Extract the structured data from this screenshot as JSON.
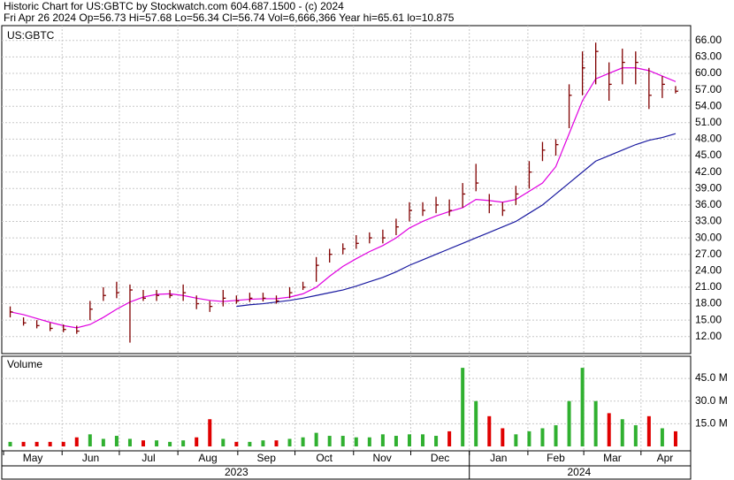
{
  "chart_data": {
    "type": "ohlc",
    "title": "Historic Chart for US:GBTC by Stockwatch.com 604.687.1500 - (c) 2024",
    "subtitle": "Fri Apr 26 2024   Op=56.73  Hi=57.68  Lo=56.34  Cl=56.74  Vol=6,666,366  Year hi=65.61  lo=10.875",
    "symbol": "US:GBTC",
    "volume_label": "Volume",
    "years": [
      "2023",
      "2024"
    ],
    "x": [
      0,
      1,
      2,
      3,
      4,
      5,
      6,
      7,
      8,
      9,
      10,
      11,
      12,
      13,
      14,
      15,
      16,
      17,
      18,
      19,
      20,
      21,
      22,
      23,
      24,
      25,
      26,
      27,
      28,
      29,
      30,
      31,
      32,
      33,
      34,
      35,
      36,
      37,
      38,
      39,
      40,
      41,
      42,
      43,
      44,
      45,
      46,
      47,
      48,
      49,
      50
    ],
    "xlim": [
      -0.5,
      51
    ],
    "xticks": [
      {
        "value": -0.5,
        "label": "May"
      },
      {
        "value": 3.9,
        "label": "Jun"
      },
      {
        "value": 8.2,
        "label": "Jul"
      },
      {
        "value": 12.6,
        "label": "Aug"
      },
      {
        "value": 17.1,
        "label": "Sep"
      },
      {
        "value": 21.4,
        "label": "Oct"
      },
      {
        "value": 25.8,
        "label": "Nov"
      },
      {
        "value": 30.1,
        "label": "Dec"
      },
      {
        "value": 34.5,
        "label": "Jan"
      },
      {
        "value": 38.9,
        "label": "Feb"
      },
      {
        "value": 43.1,
        "label": "Mar"
      },
      {
        "value": 47.4,
        "label": "Apr"
      }
    ],
    "high": [
      17.5,
      15.5,
      15,
      14.5,
      14.2,
      14,
      18.5,
      21,
      22,
      21.5,
      20.5,
      20.5,
      20.5,
      21.5,
      19.5,
      18.5,
      20.5,
      19.5,
      20,
      20,
      19.5,
      21,
      22,
      26.5,
      28,
      29,
      30.5,
      31,
      31.5,
      33.5,
      36.5,
      36.5,
      37.5,
      37,
      40,
      43.5,
      38,
      36.5,
      39.5,
      44,
      47.5,
      48,
      58,
      64,
      65.6,
      62,
      64.5,
      64,
      61,
      59.5,
      57.68
    ],
    "low": [
      15.5,
      14,
      13.5,
      13,
      12.8,
      12.5,
      15,
      18.5,
      19,
      10.9,
      18.5,
      18.5,
      19,
      18.5,
      17,
      16.5,
      17.5,
      18,
      18.3,
      18.4,
      18,
      19,
      20.5,
      22,
      25.5,
      27,
      28,
      29,
      29,
      30.5,
      33,
      34,
      34.5,
      34,
      35.5,
      38.5,
      34.5,
      34,
      36,
      39,
      44,
      45,
      50,
      56,
      58,
      55,
      58,
      58,
      53.5,
      55.5,
      56.34
    ],
    "close": [
      16.5,
      14.5,
      14,
      13.5,
      13.3,
      13,
      17,
      19.5,
      20,
      20.5,
      19,
      19.5,
      19.5,
      20,
      18,
      17.5,
      19,
      18.5,
      19,
      19,
      18.5,
      20,
      21,
      25,
      27,
      28,
      29,
      30,
      30,
      32,
      35,
      35,
      36,
      35,
      38,
      40,
      36,
      35,
      38,
      42,
      46,
      47,
      56,
      61,
      64,
      58,
      62,
      62,
      56,
      58,
      56.74
    ],
    "ma_series": [
      {
        "name": "MA20",
        "color": "#e000e0",
        "values": [
          16.5,
          16,
          15.3,
          14.6,
          14,
          13.6,
          14.2,
          15.5,
          17,
          18.3,
          19.2,
          19.7,
          19.8,
          19.5,
          19,
          18.6,
          18.4,
          18.6,
          18.8,
          18.9,
          18.9,
          19.2,
          19.8,
          21,
          23,
          24.8,
          26.2,
          27.5,
          28.6,
          30,
          31.8,
          33,
          34,
          34.8,
          35.5,
          37,
          36.8,
          36.5,
          37,
          38.5,
          40,
          43,
          49,
          55,
          59,
          60,
          61,
          61,
          60.5,
          59.5,
          58.5
        ]
      },
      {
        "name": "MA100",
        "color": "#1a1aa0",
        "values": [
          null,
          null,
          null,
          null,
          null,
          null,
          null,
          null,
          null,
          null,
          null,
          null,
          null,
          null,
          null,
          null,
          null,
          17.5,
          17.8,
          18,
          18.3,
          18.6,
          19,
          19.5,
          20,
          20.5,
          21.2,
          22,
          22.8,
          23.8,
          25,
          26,
          27,
          28,
          29,
          30,
          31,
          32,
          33,
          34.5,
          36,
          38,
          40,
          42,
          44,
          45,
          46,
          47,
          47.8,
          48.3,
          49
        ]
      }
    ],
    "bar_color": "#800000",
    "ylim": [
      8.9,
      68.7
    ],
    "yticks": [
      {
        "value": 12,
        "label": "12.00"
      },
      {
        "value": 15,
        "label": "15.00"
      },
      {
        "value": 18,
        "label": "18.00"
      },
      {
        "value": 21,
        "label": "21.00"
      },
      {
        "value": 24,
        "label": "24.00"
      },
      {
        "value": 27,
        "label": "27.00"
      },
      {
        "value": 30,
        "label": "30.00"
      },
      {
        "value": 33,
        "label": "33.00"
      },
      {
        "value": 36,
        "label": "36.00"
      },
      {
        "value": 39,
        "label": "39.00"
      },
      {
        "value": 42,
        "label": "42.00"
      },
      {
        "value": 45,
        "label": "45.00"
      },
      {
        "value": 48,
        "label": "48.00"
      },
      {
        "value": 51,
        "label": "51.00"
      },
      {
        "value": 54,
        "label": "54.00"
      },
      {
        "value": 57,
        "label": "57.00"
      },
      {
        "value": 60,
        "label": "60.00"
      },
      {
        "value": 63,
        "label": "63.00"
      },
      {
        "value": 66,
        "label": "66.00"
      }
    ],
    "volume": [
      3,
      3,
      3,
      3,
      3,
      6,
      8,
      5,
      7,
      5,
      4,
      4,
      3,
      4,
      6,
      18,
      5,
      3,
      3,
      4,
      4,
      5,
      6,
      9,
      7,
      7,
      6,
      6,
      8,
      7,
      8,
      8,
      7,
      10,
      52,
      30,
      20,
      12,
      8,
      10,
      12,
      14,
      30,
      52,
      30,
      22,
      18,
      14,
      20,
      12,
      10
    ],
    "up_color": "#30b030",
    "down_color": "#e00000",
    "vlim": [
      0,
      58.5
    ],
    "vticks": [
      {
        "value": 15,
        "label": "15.0 M"
      },
      {
        "value": 30,
        "label": "30.0 M"
      },
      {
        "value": 45,
        "label": "45.0 M"
      }
    ],
    "grid": true
  }
}
